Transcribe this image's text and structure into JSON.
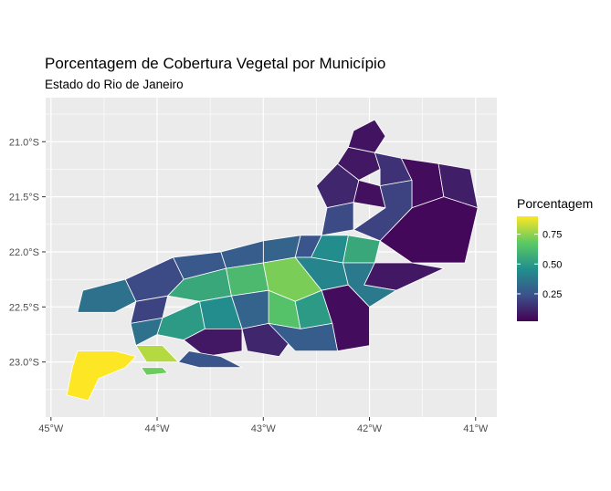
{
  "title": "Porcentagem de Cobertura Vegetal por Município",
  "subtitle": "Estado do Rio de Janeiro",
  "legend": {
    "title": "Porcentagem",
    "ticks": [
      "0.75",
      "0.50",
      "0.25"
    ],
    "tick_values": [
      0.75,
      0.5,
      0.25
    ],
    "range": [
      0.02,
      0.9
    ],
    "colors": [
      "#440154",
      "#3b528b",
      "#21908c",
      "#5dc963",
      "#fde725"
    ]
  },
  "chart_data": {
    "type": "map",
    "region": "Estado do Rio de Janeiro",
    "x_ticks": [
      "45°W",
      "44°W",
      "43°W",
      "42°W",
      "41°W"
    ],
    "x_tick_values": [
      -45,
      -44,
      -43,
      -42,
      -41
    ],
    "y_ticks": [
      "21.0°S",
      "21.5°S",
      "22.0°S",
      "22.5°S",
      "23.0°S"
    ],
    "y_tick_values": [
      -21.0,
      -21.5,
      -22.0,
      -22.5,
      -23.0
    ],
    "xlim": [
      -45.05,
      -40.8
    ],
    "ylim": [
      -23.5,
      -20.6
    ],
    "grid": true,
    "legend_position": "right",
    "regions": [
      {
        "value": 0.07,
        "outline": [
          [
            -42.15,
            -20.9
          ],
          [
            -41.95,
            -20.8
          ],
          [
            -41.85,
            -20.95
          ],
          [
            -41.95,
            -21.1
          ],
          [
            -42.2,
            -21.05
          ]
        ]
      },
      {
        "value": 0.08,
        "outline": [
          [
            -42.2,
            -21.05
          ],
          [
            -41.95,
            -21.1
          ],
          [
            -41.9,
            -21.25
          ],
          [
            -42.1,
            -21.35
          ],
          [
            -42.3,
            -21.2
          ]
        ]
      },
      {
        "value": 0.15,
        "outline": [
          [
            -41.95,
            -21.1
          ],
          [
            -41.7,
            -21.15
          ],
          [
            -41.6,
            -21.35
          ],
          [
            -41.9,
            -21.4
          ],
          [
            -41.9,
            -21.25
          ]
        ]
      },
      {
        "value": 0.12,
        "outline": [
          [
            -42.3,
            -21.2
          ],
          [
            -42.1,
            -21.35
          ],
          [
            -42.15,
            -21.55
          ],
          [
            -42.4,
            -21.6
          ],
          [
            -42.5,
            -21.4
          ]
        ]
      },
      {
        "value": 0.06,
        "outline": [
          [
            -42.1,
            -21.35
          ],
          [
            -41.9,
            -21.4
          ],
          [
            -41.85,
            -21.6
          ],
          [
            -42.15,
            -21.55
          ]
        ]
      },
      {
        "value": 0.05,
        "outline": [
          [
            -41.7,
            -21.15
          ],
          [
            -41.35,
            -21.2
          ],
          [
            -41.3,
            -21.5
          ],
          [
            -41.6,
            -21.6
          ],
          [
            -41.6,
            -21.35
          ]
        ]
      },
      {
        "value": 0.1,
        "outline": [
          [
            -41.35,
            -21.2
          ],
          [
            -41.05,
            -21.25
          ],
          [
            -40.98,
            -21.6
          ],
          [
            -41.3,
            -21.5
          ]
        ]
      },
      {
        "value": 0.04,
        "outline": [
          [
            -41.6,
            -21.6
          ],
          [
            -41.3,
            -21.5
          ],
          [
            -40.98,
            -21.6
          ],
          [
            -41.1,
            -22.1
          ],
          [
            -41.6,
            -22.1
          ],
          [
            -41.9,
            -21.9
          ]
        ]
      },
      {
        "value": 0.2,
        "outline": [
          [
            -41.9,
            -21.4
          ],
          [
            -41.6,
            -21.35
          ],
          [
            -41.6,
            -21.6
          ],
          [
            -41.9,
            -21.9
          ],
          [
            -42.15,
            -21.8
          ],
          [
            -41.85,
            -21.6
          ]
        ]
      },
      {
        "value": 0.22,
        "outline": [
          [
            -42.4,
            -21.6
          ],
          [
            -42.15,
            -21.55
          ],
          [
            -42.15,
            -21.8
          ],
          [
            -42.45,
            -21.85
          ]
        ]
      },
      {
        "value": 0.55,
        "outline": [
          [
            -42.2,
            -21.85
          ],
          [
            -41.9,
            -21.9
          ],
          [
            -41.95,
            -22.1
          ],
          [
            -42.25,
            -22.1
          ]
        ]
      },
      {
        "value": 0.45,
        "outline": [
          [
            -42.45,
            -21.85
          ],
          [
            -42.2,
            -21.85
          ],
          [
            -42.25,
            -22.1
          ],
          [
            -42.55,
            -22.05
          ]
        ]
      },
      {
        "value": 0.08,
        "outline": [
          [
            -41.95,
            -22.1
          ],
          [
            -41.6,
            -22.1
          ],
          [
            -41.3,
            -22.15
          ],
          [
            -41.75,
            -22.35
          ],
          [
            -42.05,
            -22.3
          ]
        ]
      },
      {
        "value": 0.25,
        "outline": [
          [
            -42.65,
            -21.85
          ],
          [
            -42.45,
            -21.85
          ],
          [
            -42.55,
            -22.05
          ],
          [
            -42.7,
            -22.05
          ]
        ]
      },
      {
        "value": 0.3,
        "outline": [
          [
            -43.0,
            -21.9
          ],
          [
            -42.65,
            -21.85
          ],
          [
            -42.7,
            -22.05
          ],
          [
            -43.0,
            -22.1
          ]
        ]
      },
      {
        "value": 0.28,
        "outline": [
          [
            -43.4,
            -22.0
          ],
          [
            -43.0,
            -21.9
          ],
          [
            -43.0,
            -22.1
          ],
          [
            -43.35,
            -22.15
          ]
        ]
      },
      {
        "value": 0.26,
        "outline": [
          [
            -43.85,
            -22.05
          ],
          [
            -43.4,
            -22.0
          ],
          [
            -43.35,
            -22.15
          ],
          [
            -43.75,
            -22.25
          ]
        ]
      },
      {
        "value": 0.22,
        "outline": [
          [
            -44.3,
            -22.25
          ],
          [
            -43.85,
            -22.05
          ],
          [
            -43.75,
            -22.25
          ],
          [
            -43.9,
            -22.4
          ],
          [
            -44.2,
            -22.45
          ]
        ]
      },
      {
        "value": 0.35,
        "outline": [
          [
            -44.7,
            -22.35
          ],
          [
            -44.3,
            -22.25
          ],
          [
            -44.2,
            -22.45
          ],
          [
            -44.4,
            -22.55
          ],
          [
            -44.75,
            -22.55
          ]
        ]
      },
      {
        "value": 0.2,
        "outline": [
          [
            -44.2,
            -22.45
          ],
          [
            -43.9,
            -22.4
          ],
          [
            -43.95,
            -22.6
          ],
          [
            -44.25,
            -22.65
          ]
        ]
      },
      {
        "value": 0.55,
        "outline": [
          [
            -43.75,
            -22.25
          ],
          [
            -43.35,
            -22.15
          ],
          [
            -43.3,
            -22.4
          ],
          [
            -43.6,
            -22.45
          ],
          [
            -43.9,
            -22.4
          ]
        ]
      },
      {
        "value": 0.62,
        "outline": [
          [
            -43.35,
            -22.15
          ],
          [
            -43.0,
            -22.1
          ],
          [
            -42.95,
            -22.35
          ],
          [
            -43.3,
            -22.4
          ]
        ]
      },
      {
        "value": 0.72,
        "outline": [
          [
            -43.0,
            -22.1
          ],
          [
            -42.7,
            -22.05
          ],
          [
            -42.45,
            -22.35
          ],
          [
            -42.7,
            -22.45
          ],
          [
            -42.95,
            -22.35
          ]
        ]
      },
      {
        "value": 0.42,
        "outline": [
          [
            -42.7,
            -22.05
          ],
          [
            -42.55,
            -22.05
          ],
          [
            -42.25,
            -22.1
          ],
          [
            -42.2,
            -22.3
          ],
          [
            -42.45,
            -22.35
          ]
        ]
      },
      {
        "value": 0.38,
        "outline": [
          [
            -42.25,
            -22.1
          ],
          [
            -41.95,
            -22.1
          ],
          [
            -42.05,
            -22.3
          ],
          [
            -41.75,
            -22.35
          ],
          [
            -42.0,
            -22.5
          ],
          [
            -42.2,
            -22.3
          ]
        ]
      },
      {
        "value": 0.65,
        "outline": [
          [
            -42.95,
            -22.35
          ],
          [
            -42.7,
            -22.45
          ],
          [
            -42.65,
            -22.7
          ],
          [
            -42.95,
            -22.65
          ]
        ]
      },
      {
        "value": 0.5,
        "outline": [
          [
            -42.7,
            -22.45
          ],
          [
            -42.45,
            -22.35
          ],
          [
            -42.35,
            -22.65
          ],
          [
            -42.65,
            -22.7
          ]
        ]
      },
      {
        "value": 0.05,
        "outline": [
          [
            -42.45,
            -22.35
          ],
          [
            -42.2,
            -22.3
          ],
          [
            -42.0,
            -22.5
          ],
          [
            -42.0,
            -22.85
          ],
          [
            -42.3,
            -22.9
          ],
          [
            -42.35,
            -22.65
          ]
        ]
      },
      {
        "value": 0.3,
        "outline": [
          [
            -43.3,
            -22.4
          ],
          [
            -42.95,
            -22.35
          ],
          [
            -42.95,
            -22.65
          ],
          [
            -43.2,
            -22.7
          ]
        ]
      },
      {
        "value": 0.45,
        "outline": [
          [
            -43.6,
            -22.45
          ],
          [
            -43.3,
            -22.4
          ],
          [
            -43.2,
            -22.7
          ],
          [
            -43.55,
            -22.7
          ]
        ]
      },
      {
        "value": 0.5,
        "outline": [
          [
            -43.95,
            -22.6
          ],
          [
            -43.6,
            -22.45
          ],
          [
            -43.55,
            -22.7
          ],
          [
            -43.75,
            -22.8
          ],
          [
            -44.0,
            -22.75
          ]
        ]
      },
      {
        "value": 0.35,
        "outline": [
          [
            -44.25,
            -22.65
          ],
          [
            -43.95,
            -22.6
          ],
          [
            -44.0,
            -22.75
          ],
          [
            -44.2,
            -22.85
          ]
        ]
      },
      {
        "value": 0.08,
        "outline": [
          [
            -43.55,
            -22.7
          ],
          [
            -43.2,
            -22.7
          ],
          [
            -43.2,
            -22.9
          ],
          [
            -43.55,
            -22.95
          ],
          [
            -43.75,
            -22.8
          ]
        ]
      },
      {
        "value": 0.12,
        "outline": [
          [
            -43.2,
            -22.7
          ],
          [
            -42.95,
            -22.65
          ],
          [
            -42.7,
            -22.75
          ],
          [
            -42.85,
            -22.95
          ],
          [
            -43.15,
            -22.9
          ]
        ]
      },
      {
        "value": 0.28,
        "outline": [
          [
            -42.95,
            -22.65
          ],
          [
            -42.65,
            -22.7
          ],
          [
            -42.35,
            -22.65
          ],
          [
            -42.3,
            -22.9
          ],
          [
            -42.7,
            -22.9
          ]
        ]
      },
      {
        "value": 0.25,
        "outline": [
          [
            -43.7,
            -22.9
          ],
          [
            -43.4,
            -22.95
          ],
          [
            -43.2,
            -23.05
          ],
          [
            -43.6,
            -23.05
          ],
          [
            -43.8,
            -23.0
          ]
        ]
      },
      {
        "value": 0.8,
        "outline": [
          [
            -44.2,
            -22.85
          ],
          [
            -43.95,
            -22.85
          ],
          [
            -43.8,
            -23.0
          ],
          [
            -44.1,
            -23.0
          ]
        ]
      },
      {
        "value": 0.9,
        "outline": [
          [
            -44.75,
            -22.9
          ],
          [
            -44.4,
            -22.9
          ],
          [
            -44.2,
            -22.95
          ],
          [
            -44.3,
            -23.05
          ],
          [
            -44.55,
            -23.15
          ],
          [
            -44.65,
            -23.35
          ],
          [
            -44.85,
            -23.3
          ],
          [
            -44.8,
            -23.05
          ]
        ]
      },
      {
        "value": 0.7,
        "outline": [
          [
            -44.15,
            -23.05
          ],
          [
            -43.95,
            -23.05
          ],
          [
            -43.9,
            -23.1
          ],
          [
            -44.1,
            -23.12
          ]
        ]
      }
    ]
  }
}
